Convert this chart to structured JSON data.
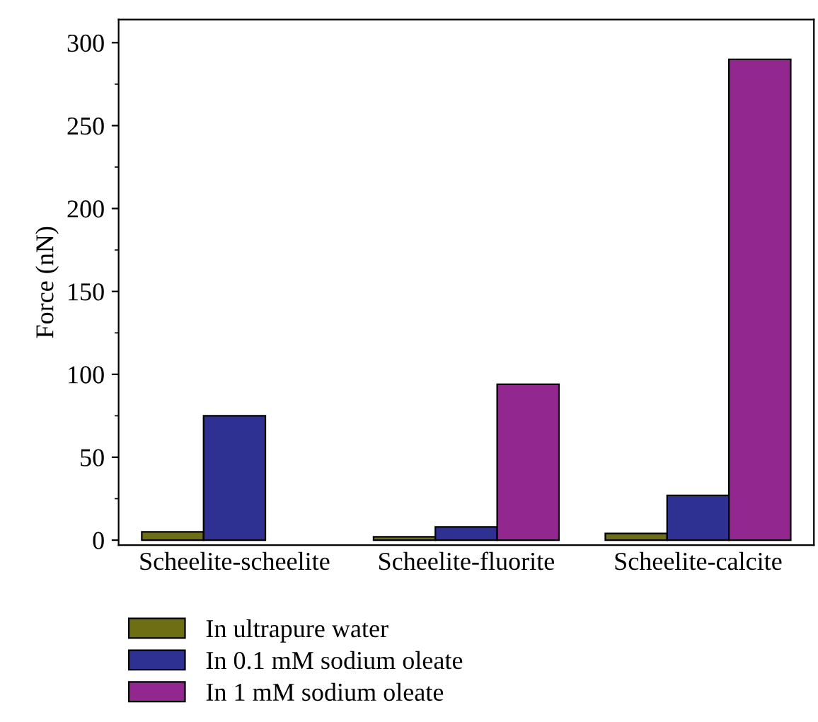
{
  "chart_data": {
    "type": "bar",
    "ylabel": "Force (nN)",
    "categories": [
      "Scheelite-scheelite",
      "Scheelite-fluorite",
      "Scheelite-calcite"
    ],
    "series": [
      {
        "name": "In ultrapure water",
        "color": "#6e6e14",
        "values": [
          5,
          2,
          4
        ]
      },
      {
        "name": "In 0.1 mM sodium oleate",
        "color": "#2e3192",
        "values": [
          75,
          8,
          27
        ]
      },
      {
        "name": "In 1 mM sodium oleate",
        "color": "#92278f",
        "values": [
          null,
          94,
          290
        ]
      }
    ],
    "ylim": [
      -3,
      314
    ],
    "yticks": [
      0,
      50,
      100,
      150,
      200,
      250,
      300
    ],
    "grid": false,
    "legend": "bottom left"
  }
}
